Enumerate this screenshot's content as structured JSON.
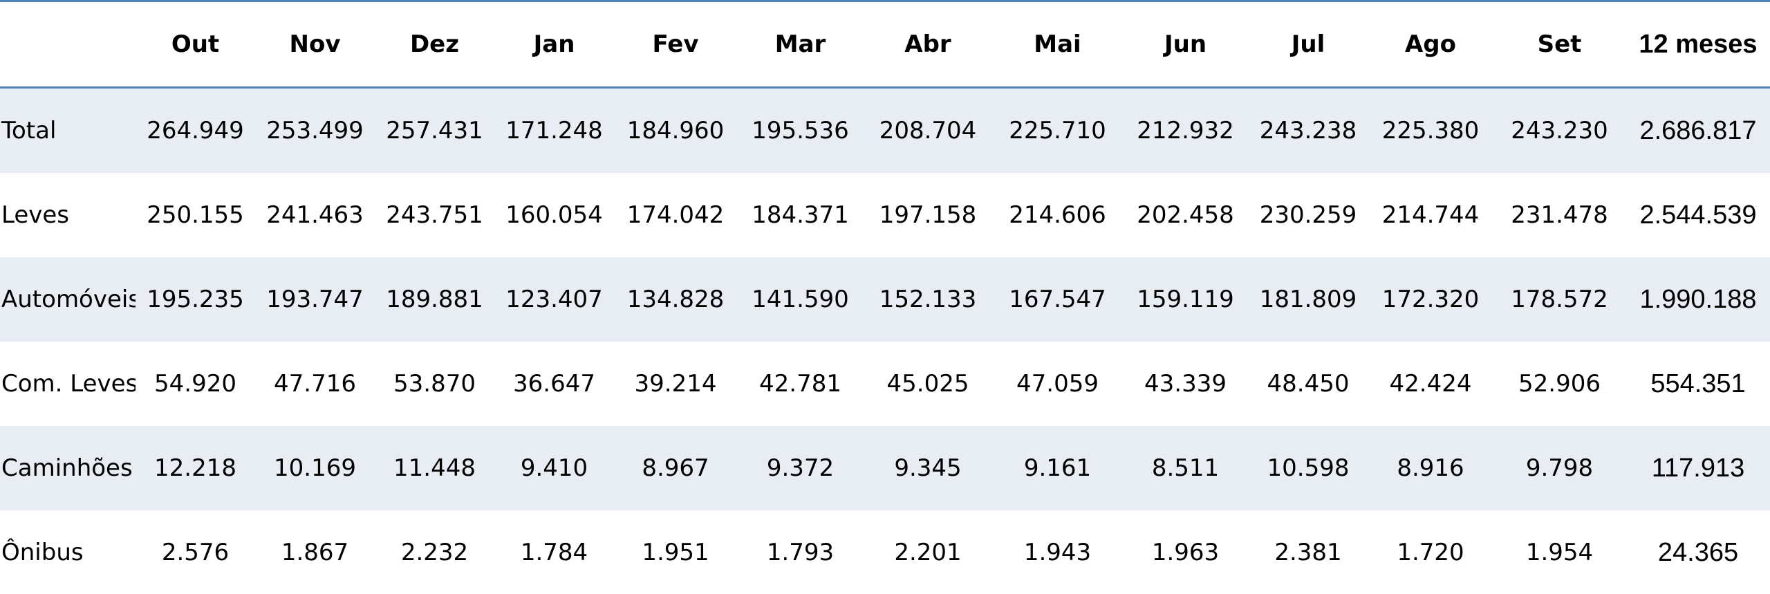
{
  "table": {
    "header": [
      "Out",
      "Nov",
      "Dez",
      "Jan",
      "Fev",
      "Mar",
      "Abr",
      "Mai",
      "Jun",
      "Jul",
      "Ago",
      "Set",
      "12 meses"
    ],
    "rows": [
      {
        "label": "Total",
        "values": [
          "264.949",
          "253.499",
          "257.431",
          "171.248",
          "184.960",
          "195.536",
          "208.704",
          "225.710",
          "212.932",
          "243.238",
          "225.380",
          "243.230",
          "2.686.817"
        ]
      },
      {
        "label": "Leves",
        "values": [
          "250.155",
          "241.463",
          "243.751",
          "160.054",
          "174.042",
          "184.371",
          "197.158",
          "214.606",
          "202.458",
          "230.259",
          "214.744",
          "231.478",
          "2.544.539"
        ]
      },
      {
        "label": "Automóveis",
        "values": [
          "195.235",
          "193.747",
          "189.881",
          "123.407",
          "134.828",
          "141.590",
          "152.133",
          "167.547",
          "159.119",
          "181.809",
          "172.320",
          "178.572",
          "1.990.188"
        ]
      },
      {
        "label": "Com. Leves",
        "values": [
          "54.920",
          "47.716",
          "53.870",
          "36.647",
          "39.214",
          "42.781",
          "45.025",
          "47.059",
          "43.339",
          "48.450",
          "42.424",
          "52.906",
          "554.351"
        ]
      },
      {
        "label": "Caminhões",
        "values": [
          "12.218",
          "10.169",
          "11.448",
          "9.410",
          "8.967",
          "9.372",
          "9.345",
          "9.161",
          "8.511",
          "10.598",
          "8.916",
          "9.798",
          "117.913"
        ]
      },
      {
        "label": "Ônibus",
        "values": [
          "2.576",
          "1.867",
          "2.232",
          "1.784",
          "1.951",
          "1.793",
          "2.201",
          "1.943",
          "1.963",
          "2.381",
          "1.720",
          "1.954",
          "24.365"
        ]
      }
    ]
  }
}
